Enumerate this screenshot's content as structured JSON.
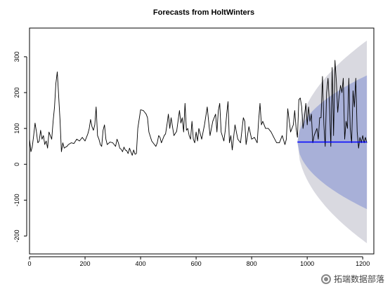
{
  "chart_data": {
    "type": "line",
    "title": "Forecasts from HoltWinters",
    "xlabel": "",
    "ylabel": "",
    "xlim": [
      0,
      1240
    ],
    "ylim": [
      -250,
      380
    ],
    "x_ticks": [
      0,
      200,
      400,
      600,
      800,
      1000,
      1200
    ],
    "y_ticks": [
      -200,
      -100,
      0,
      100,
      200,
      300
    ],
    "grid": false,
    "legend": "none",
    "series": [
      {
        "role": "observed",
        "color": "#000000",
        "x": [
          0,
          5,
          10,
          15,
          20,
          25,
          28,
          30,
          35,
          40,
          45,
          50,
          55,
          60,
          65,
          70,
          75,
          80,
          85,
          90,
          95,
          100,
          105,
          110,
          115,
          120,
          125,
          130,
          135,
          140,
          150,
          160,
          170,
          180,
          190,
          200,
          210,
          215,
          220,
          225,
          230,
          235,
          240,
          245,
          250,
          255,
          260,
          265,
          270,
          275,
          280,
          290,
          300,
          305,
          310,
          315,
          320,
          325,
          330,
          335,
          340,
          345,
          350,
          355,
          360,
          365,
          370,
          375,
          380,
          385,
          390,
          400,
          410,
          415,
          420,
          425,
          430,
          440,
          450,
          455,
          460,
          465,
          470,
          475,
          480,
          485,
          490,
          495,
          500,
          505,
          510,
          520,
          530,
          540,
          545,
          550,
          555,
          560,
          565,
          570,
          575,
          580,
          585,
          590,
          595,
          600,
          605,
          610,
          620,
          630,
          640,
          650,
          660,
          670,
          675,
          680,
          685,
          690,
          700,
          705,
          710,
          715,
          720,
          725,
          730,
          740,
          750,
          760,
          770,
          775,
          780,
          785,
          790,
          800,
          810,
          820,
          825,
          830,
          835,
          840,
          850,
          860,
          870,
          880,
          890,
          900,
          910,
          920,
          925,
          930,
          940,
          950,
          955,
          960,
          965
        ],
        "y": [
          70,
          35,
          50,
          80,
          115,
          90,
          70,
          60,
          65,
          95,
          70,
          80,
          55,
          65,
          45,
          90,
          80,
          70,
          120,
          160,
          225,
          258,
          190,
          120,
          35,
          60,
          45,
          48,
          50,
          55,
          60,
          58,
          70,
          65,
          75,
          65,
          85,
          100,
          125,
          105,
          95,
          110,
          160,
          80,
          70,
          55,
          50,
          95,
          110,
          70,
          55,
          62,
          60,
          55,
          50,
          70,
          60,
          45,
          42,
          35,
          48,
          40,
          38,
          30,
          45,
          35,
          25,
          40,
          28,
          30,
          100,
          152,
          150,
          145,
          140,
          130,
          90,
          65,
          55,
          50,
          60,
          80,
          75,
          60,
          70,
          80,
          85,
          110,
          140,
          100,
          130,
          80,
          92,
          150,
          115,
          130,
          90,
          170,
          95,
          100,
          80,
          70,
          120,
          70,
          60,
          90,
          65,
          100,
          70,
          110,
          160,
          80,
          120,
          140,
          90,
          150,
          170,
          90,
          65,
          95,
          140,
          175,
          60,
          80,
          40,
          110,
          70,
          60,
          130,
          120,
          55,
          80,
          105,
          70,
          75,
          60,
          120,
          170,
          110,
          120,
          100,
          100,
          90,
          75,
          60,
          60,
          80,
          55,
          70,
          155,
          90,
          110,
          150,
          100,
          75
        ]
      },
      {
        "role": "forecast-tail-observed",
        "color": "#000000",
        "x": [
          965,
          970,
          975,
          980,
          985,
          990,
          995,
          1000,
          1005,
          1010,
          1015,
          1020,
          1025,
          1030,
          1035,
          1040,
          1045,
          1050,
          1055,
          1060,
          1065,
          1070,
          1075,
          1080,
          1085,
          1090,
          1095,
          1100,
          1105,
          1110,
          1115,
          1120,
          1125,
          1130,
          1135,
          1140,
          1145,
          1150,
          1155,
          1160,
          1165,
          1170,
          1175,
          1180,
          1185,
          1190,
          1195,
          1200,
          1205,
          1210,
          1215
        ],
        "y": [
          75,
          180,
          185,
          160,
          100,
          130,
          170,
          110,
          160,
          120,
          140,
          60,
          80,
          90,
          100,
          70,
          130,
          130,
          245,
          110,
          50,
          200,
          240,
          170,
          50,
          270,
          80,
          290,
          230,
          145,
          190,
          220,
          200,
          240,
          70,
          120,
          100,
          240,
          100,
          60,
          205,
          160,
          240,
          90,
          45,
          75,
          60,
          80,
          60,
          75,
          60
        ]
      },
      {
        "role": "point-forecast",
        "color": "#0000ff",
        "x": [
          965,
          1215
        ],
        "y": [
          62,
          62
        ]
      }
    ],
    "bands": [
      {
        "name": "95% interval",
        "color": "#d9d9e0",
        "x0": 965,
        "x1": 1215,
        "upper_end": 345,
        "lower_end": -220,
        "center": 62
      },
      {
        "name": "80% interval",
        "color": "#a8b0d8",
        "x0": 965,
        "x1": 1215,
        "upper_end": 248,
        "lower_end": -125,
        "center": 62
      }
    ]
  },
  "watermark": {
    "text": "拓端数据部落",
    "icon": "wechat-icon"
  }
}
